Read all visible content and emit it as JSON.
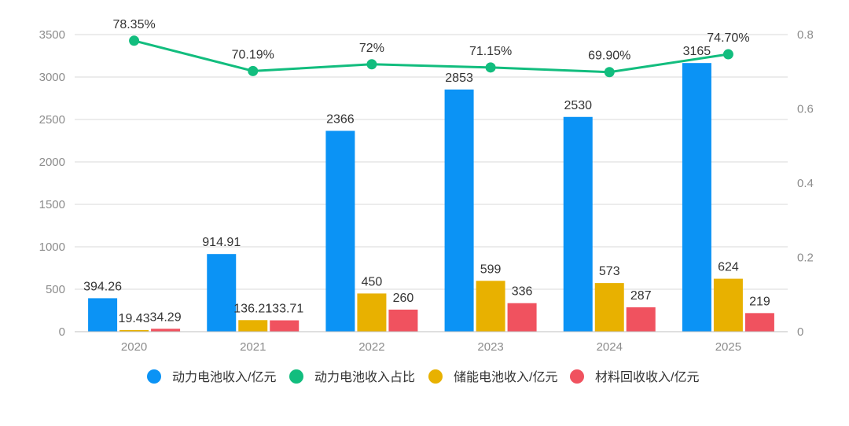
{
  "chart_data": {
    "type": "bar",
    "categories": [
      "2020",
      "2021",
      "2022",
      "2023",
      "2024",
      "2025"
    ],
    "series": [
      {
        "name": "动力电池收入/亿元",
        "kind": "bar",
        "axis": "left",
        "color": "#0b93f5",
        "values": [
          394.26,
          914.91,
          2366,
          2853,
          2530,
          3165
        ],
        "labels": [
          "394.26",
          "914.91",
          "2366",
          "2853",
          "2530",
          "3165"
        ]
      },
      {
        "name": "储能电池收入/亿元",
        "kind": "bar",
        "axis": "left",
        "color": "#e8b100",
        "values": [
          19.43,
          136.21,
          450,
          599,
          573,
          624
        ],
        "labels": [
          "19.43",
          "136.21",
          "450",
          "599",
          "573",
          "624"
        ]
      },
      {
        "name": "材料回收收入/亿元",
        "kind": "bar",
        "axis": "left",
        "color": "#f0525f",
        "values": [
          34.29,
          133.71,
          260,
          336,
          287,
          219
        ],
        "labels": [
          "34.29",
          "133.71",
          "260",
          "336",
          "287",
          "219"
        ]
      },
      {
        "name": "动力电池收入占比",
        "kind": "line",
        "axis": "right",
        "color": "#12bd7e",
        "values": [
          0.7835,
          0.7019,
          0.72,
          0.7115,
          0.699,
          0.747
        ],
        "labels": [
          "78.35%",
          "70.19%",
          "72%",
          "71.15%",
          "69.90%",
          "74.70%"
        ]
      }
    ],
    "legend_order": [
      "动力电池收入/亿元",
      "动力电池收入占比",
      "储能电池收入/亿元",
      "材料回收收入/亿元"
    ],
    "y_left": {
      "min": 0,
      "max": 3500,
      "ticks": [
        "0",
        "500",
        "1000",
        "1500",
        "2000",
        "2500",
        "3000",
        "3500"
      ]
    },
    "y_right": {
      "min": 0,
      "max": 0.8,
      "ticks": [
        "0",
        "0.2",
        "0.4",
        "0.6",
        "0.8"
      ]
    },
    "grid": true,
    "legend_position": "bottom",
    "gridline_color": "#d9d9d9",
    "axis_color": "#bfbfbf"
  }
}
